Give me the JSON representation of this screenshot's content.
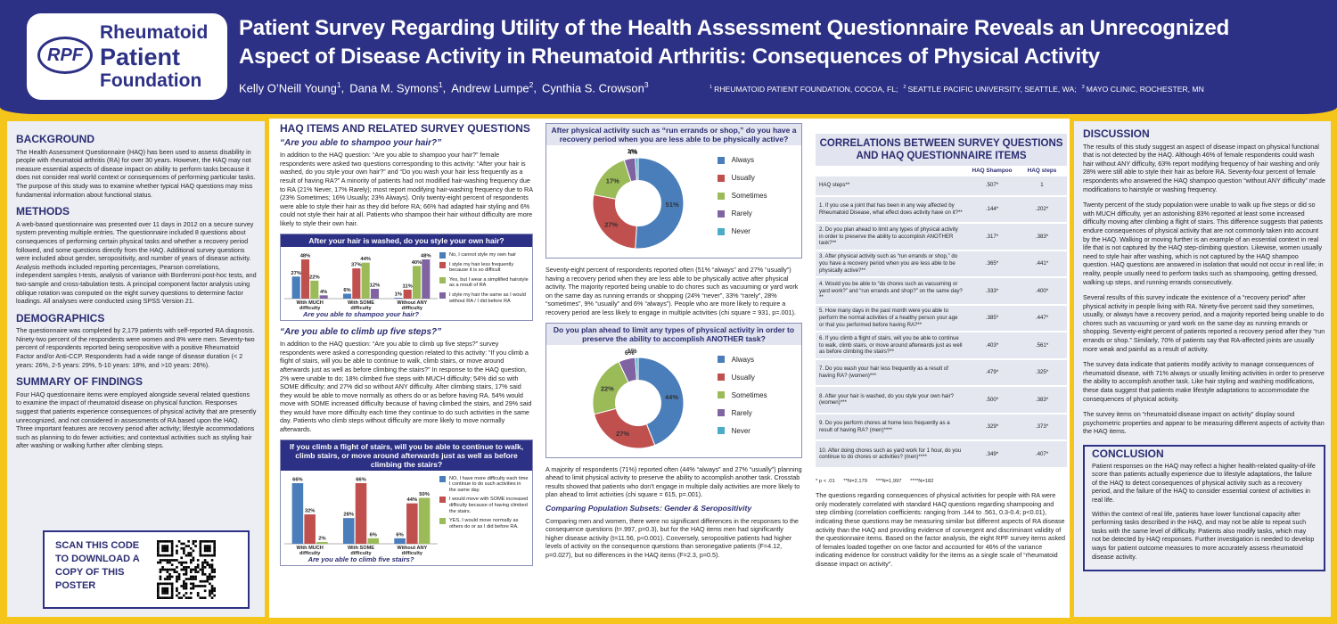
{
  "header": {
    "logo": {
      "abbr": "RPF",
      "lines": [
        "Rheumatoid",
        "Patient",
        "Foundation"
      ]
    },
    "title": [
      "Patient Survey Regarding Utility of the Health Assessment Questionnaire Reveals an Unrecognized",
      "Aspect of Disease Activity in Rheumatoid Arthritis: Consequences of Physical Activity"
    ],
    "authors": [
      {
        "name": "Kelly O’Neill Young",
        "sup": "1",
        "after": ","
      },
      {
        "name": "Dana M. Symons",
        "sup": "1",
        "after": ","
      },
      {
        "name": "Andrew Lumpe",
        "sup": "2",
        "after": ","
      },
      {
        "name": "Cynthia S. Crowson",
        "sup": "3"
      }
    ],
    "affiliations": [
      {
        "sup": "1",
        "text": "RHEUMATOID PATIENT FOUNDATION, COCOA, FL;"
      },
      {
        "sup": "2",
        "text": "SEATTLE PACIFIC UNIVERSITY, SEATTLE, WA;"
      },
      {
        "sup": "3",
        "text": "MAYO CLINIC, ROCHESTER, MN"
      }
    ]
  },
  "left": {
    "sections": [
      {
        "heading": "BACKGROUND",
        "text": "The Health Assessment Questionnaire (HAQ) has been used to assess disability in people with rheumatoid arthritis (RA) for over 30 years. However, the HAQ may not measure essential aspects of disease impact on ability to perform tasks because it does not consider real world context or consequences of performing particular tasks. The purpose of this study was to examine whether typical HAQ questions may miss fundamental information about functional status."
      },
      {
        "heading": "METHODS",
        "text": "A web-based questionnaire was presented over 11 days in 2012 on a secure survey system preventing multiple entries. The questionnaire included 8 questions about consequences of performing certain physical tasks and whether a recovery period followed, and some questions directly from the HAQ. Additional survey questions were included about gender, seropositivity, and number of years of disease activity. Analysis methods included reporting percentages, Pearson correlations, independent samples t-tests, analysis of variance with Bonferroni post-hoc tests, and two-sample and cross-tabulation tests. A principal component factor analysis using oblique rotation was computed on the eight survey questions to determine factor loadings. All analyses were conducted using SPSS Version 21."
      },
      {
        "heading": "DEMOGRAPHICS",
        "text": "The questionnaire was completed by 2,179 patients with self-reported RA diagnosis. Ninety-two percent of the respondents were women and 8% were men.  Seventy-two percent of respondents reported being seropositive with a positive Rheumatoid Factor and/or Anti-CCP.  Respondents had a wide range of disease duration (< 2 years: 26%, 2-5 years: 29%, 5-10 years: 18%, and >10 years: 26%)."
      },
      {
        "heading": "SUMMARY OF FINDINGS",
        "text": "Four HAQ questionnaire items were employed alongside several related questions to examine the impact of rheumatoid disease on physical function. Responses suggest that patients experience consequences of physical activity that are presently unrecognized, and not considered in assessments of RA based upon the HAQ. Three important features are recovery period after activity; lifestyle accommodations such as planning to do fewer activities; and contextual activities such as styling hair after washing or walking further after climbing steps."
      }
    ],
    "qr_text": "SCAN THIS CODE TO DOWNLOAD A COPY OF THIS POSTER"
  },
  "haq": {
    "heading": "HAQ ITEMS AND RELATED SURVEY QUESTIONS",
    "q1": "“Are you able to shampoo your hair?”",
    "p1": "In addition to the HAQ question: “Are you able to shampoo your hair?” female respondents were asked two questions corresponding to this activity: “After your hair is washed, do you style your own hair?” and “Do you wash your hair less frequently as a result of having RA?” A minority of patients had not modified hair-washing frequency due to RA (21% Never, 17% Rarely); most report modifying hair-washing frequency due to RA (23% Sometimes; 16% Usually; 23% Always). Only twenty-eight percent of respondents were able to style their hair as they did before RA; 66% had adapted hair styling and 6% could not style their hair at all. Patients who shampoo their hair without difficulty are more likely to style their own hair.",
    "q2": "“Are you able to climb up five steps?”",
    "p2": "In addition to the HAQ question: “Are you able to climb up five steps?” survey respondents were asked a corresponding question related to this activity: “If you climb a flight of stairs, will you be able to continue to walk, climb stairs, or move around afterwards just as well as before climbing the stairs?” In response to the HAQ question, 2% were unable to do; 18% climbed five steps with MUCH difficulty; 54% did so with SOME difficulty; and 27% did so without ANY difficulty. After climbing stairs, 17% said they would be able to move normally as others do or as before having RA. 54% would move with SOME increased difficulty because of having climbed the stairs, and 29% said they would have more difficulty each time they continue to do such activities in the same day. Patients who climb steps without difficulty are more likely to move normally afterwards."
  },
  "charts": [
    {
      "type": "bar",
      "title": "After your hair is washed, do you style your own hair?",
      "x_label": "Are you able to shampoo your hair?",
      "categories": [
        "With MUCH difficulty",
        "With SOME difficulty",
        "Without ANY difficulty"
      ],
      "series": [
        {
          "name": "No, I cannot style my own hair",
          "color": "#4a7ebb",
          "values": [
            27,
            6,
            1
          ],
          "value_labels": [
            "27%",
            "6%",
            "1%"
          ]
        },
        {
          "name": "I style my hair less frequently because it is so difficult",
          "color": "#c0504d",
          "values": [
            48,
            37,
            11
          ],
          "value_labels": [
            "48%",
            "37%",
            "11%"
          ]
        },
        {
          "name": "Yes, but I wear a simplified hairstyle as a result of RA",
          "color": "#9bbb59",
          "values": [
            22,
            44,
            40
          ],
          "value_labels": [
            "22%",
            "44%",
            "40%"
          ]
        },
        {
          "name": "I style my hair the same as I would without RA / I did before RA",
          "color": "#8064a2",
          "values": [
            4,
            12,
            48
          ],
          "value_labels": [
            "4%",
            "12%",
            "48%"
          ]
        }
      ]
    },
    {
      "type": "bar",
      "title": "If you climb a flight of stairs, will you be able to continue to walk, climb stairs, or move around afterwards just as well as before climbing the stairs?",
      "x_label": "Are you able to climb five stairs?",
      "categories": [
        "With MUCH difficulty",
        "With SOME difficulty",
        "Without ANY difficulty"
      ],
      "series": [
        {
          "name": "NO, I have more difficulty each time I continue to do such activities in the same day.",
          "color": "#4a7ebb",
          "values": [
            66,
            28,
            6
          ],
          "value_labels": [
            "66%",
            "28%",
            "6%"
          ]
        },
        {
          "name": "I would move with SOME increased difficulty  because of having climbed the stairs.",
          "color": "#c0504d",
          "values": [
            32,
            66,
            44
          ],
          "value_labels": [
            "32%",
            "66%",
            "44%"
          ]
        },
        {
          "name": "YES, I would move normally as others do or as I did before RA.",
          "color": "#9bbb59",
          "values": [
            2,
            6,
            50
          ],
          "value_labels": [
            "2%",
            "6%",
            "50%"
          ]
        }
      ]
    },
    {
      "type": "pie",
      "donut": true,
      "title": "After physical activity such as “run errands or shop,” do you have a recovery period when you are less able to be physically active?",
      "categories": [
        "Always",
        "Usually",
        "Sometimes",
        "Rarely",
        "Never"
      ],
      "values": [
        51,
        27,
        17,
        4,
        1
      ],
      "value_labels": [
        "51%",
        "27%",
        "17%",
        "4%",
        "1%"
      ],
      "colors": [
        "#4a7ebb",
        "#c0504d",
        "#9bbb59",
        "#8064a2",
        "#4bacc6"
      ]
    },
    {
      "type": "pie",
      "donut": true,
      "title": "Do you plan ahead to limit any types of physical activity in order to preserve the ability to accomplish ANOTHER task?",
      "categories": [
        "Always",
        "Usually",
        "Sometimes",
        "Rarely",
        "Never"
      ],
      "values": [
        44,
        27,
        22,
        6,
        1
      ],
      "value_labels": [
        "44%",
        "27%",
        "22%",
        "6%",
        "1%"
      ],
      "colors": [
        "#4a7ebb",
        "#c0504d",
        "#9bbb59",
        "#8064a2",
        "#4bacc6"
      ]
    }
  ],
  "middle": {
    "pie1_text": "Seventy-eight percent of respondents reported often (51% “always” and 27% “usually”) having a recovery period when they are less able to be physically active after physical activity. The majority reported being unable to do chores such as vacuuming or yard work on the same day as running errands or shopping (24% “never”, 33% “rarely”, 28% “sometimes”, 9% “usually” and 6% “always”). People who are more likely to require a recovery period are less likely to engage in multiple activities (chi square = 931, p=.001).",
    "pie2_text": "A majority of respondents (71%) reported often (44% “always” and 27% “usually”) planning ahead to limit physical activity to preserve the ability to accomplish another task. Crosstab results showed that patients who don’t engage in multiple daily activities are more likely to plan ahead to limit activities (chi square = 615, p=.001).",
    "subsets_heading": "Comparing Population Subsets: Gender & Seropositivity",
    "subsets_text": "Comparing men and women, there were no significant differences in the responses to the consequence questions (t=.997, p=0.3), but for the HAQ items men had significantly higher disease activity (t=11.56, p<0.001). Conversely, seropositive patients had higher levels of activity on the consequence questions than seronegative patients (F=4.12, p=0.027), but no differences in the HAQ items (F=2.3, p=0.5)."
  },
  "correlations": {
    "heading": "CORRELATIONS BETWEEN SURVEY QUESTIONS AND HAQ QUESTIONNAIRE ITEMS",
    "columns": [
      "HAQ Shampoo",
      "HAQ steps"
    ],
    "rows": [
      [
        "HAQ steps**",
        ".507*",
        "1"
      ],
      [
        "1. If you use a joint that has been in any way affected by Rheumatoid Disease, what effect does activity have on it?**",
        ".144*",
        ".202*"
      ],
      [
        "2. Do you plan ahead to limit any types of physical activity in order to preserve the ability to accomplish ANOTHER task?**",
        ".317*",
        ".383*"
      ],
      [
        "3. After physical activity such as “run errands or shop,” do you have a recovery period when you are less able to be physically active?**",
        ".365*",
        ".441*"
      ],
      [
        "4. Would you be able to “do chores such as vacuuming or yard work?” and “run errands and shop?” on the same day?**",
        ".333*",
        ".400*"
      ],
      [
        "5. How many days in the past month were you able to perform the normal activities of a healthy person your age or that you performed before having RA?**",
        ".385*",
        ".447*"
      ],
      [
        "6. If you climb a flight of stairs, will you be able to continue to walk, climb stairs, or move around afterwards just as well as before climbing the stairs?**",
        ".403*",
        ".561*"
      ],
      [
        "7. Do you wash your hair less frequently as a result of having RA? (women)***",
        ".479*",
        ".325*"
      ],
      [
        "8. After your hair is washed, do you style your own hair? (women)***",
        ".500*",
        ".383*"
      ],
      [
        "9. Do you perform chores at home less frequently as a result of having RA? (men)****",
        ".329*",
        ".373*"
      ],
      [
        "10. After doing chores such as yard work for 1 hour, do you continue to do chores or activities? (men)****",
        ".349*",
        ".407*"
      ]
    ],
    "footnote": "* p < .01      **N=2,179      ***N=1,997      ****N=182",
    "text": "The questions regarding consequences of physical activities for people with RA were only moderately correlated with standard HAQ questions regarding shampooing and step climbing (correlation coefficients: ranging from .144 to .561, 0.3-0.4; p<0.01), indicating these questions may be measuring similar but different aspects of RA disease activity than the HAQ and providing evidence of convergent and discriminant validity of the questionnaire items. Based on the factor analysis, the eight RPF survey items asked of females loaded together on one factor and accounted for 46% of the variance indicating evidence for construct validity for the items as a single scale of “rheumatoid disease impact on activity”."
  },
  "discussion": {
    "heading": "DISCUSSION",
    "paragraphs": [
      "The results of this study suggest an aspect of disease impact on physical functional that is not detected by the HAQ. Although 46% of female respondents could wash hair without ANY difficulty, 63% report modifying frequency of hair washing and only 28% were still able to style their hair as before RA. Seventy-four percent of female respondents who answered the HAQ shampoo question “without ANY difficulty” made modifications to hairstyle or washing frequency.",
      "Twenty percent of the study population were unable to walk up five steps or did so with MUCH difficulty, yet an astonishing 83% reported at least some increased difficulty moving after climbing a flight of stairs. This difference suggests that patients endure consequences of physical activity that are not commonly taken into account by the HAQ. Walking or moving further is an example of an essential context in real life that is not captured by the HAQ step-climbing question. Likewise, women usually need to style hair after washing, which is not captured by the HAQ shampoo question. HAQ questions are answered in isolation that would not occur in real life; in reality, people usually need to perform tasks such as shampooing, getting dressed, walking up steps, and running errands consecutively.",
      "Several results of this survey indicate the existence of a “recovery period” after physical activity in people living with RA. Ninety-five percent said they sometimes, usually, or always have a recovery period, and a majority reported being unable to do chores such as vacuuming or yard work on the same day as running errands or shopping. Seventy-eight percent of patients reported a recovery period after they “run errands or shop.” Similarly, 70% of patients say that RA-affected joints are usually more weak and painful as a result of activity.",
      "The survey data indicate that patients modify activity to manage consequences of rheumatoid disease, with 71% always or usually limiting activities in order to preserve the ability to accomplish another task. Like hair styling and washing modifications, these data suggest that patients make lifestyle adaptations to accommodate the consequences of physical activity.",
      "The survey items on “rheumatoid disease impact on activity” display sound psychometric properties and appear to be measuring different aspects of activity than the HAQ items."
    ]
  },
  "conclusion": {
    "heading": "CONCLUSION",
    "paragraphs": [
      "Patient responses on the HAQ may reflect a higher health-related quality-of-life score than patients actually experience due to lifestyle adaptations, the failure of the HAQ to detect consequences of physical activity such as a recovery period, and the failure of the HAQ to consider essential context of activities in real life.",
      "Within the context of real life, patients have lower functional capacity after performing tasks described in the HAQ, and may not be able to repeat such tasks with the same level of difficulty. Patients also modify tasks, which may not be detected by HAQ responses. Further investigation is needed to develop ways for patient outcome measures to more accurately assess rheumatoid disease activity."
    ]
  }
}
